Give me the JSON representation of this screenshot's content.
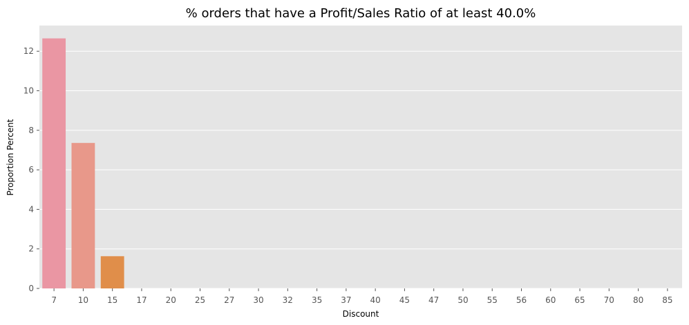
{
  "chart_data": {
    "type": "bar",
    "title": "% orders that have a Profit/Sales Ratio of at least 40.0%",
    "xlabel": "Discount",
    "ylabel": "Proportion Percent",
    "categories": [
      "7",
      "10",
      "15",
      "17",
      "20",
      "25",
      "27",
      "30",
      "32",
      "35",
      "37",
      "40",
      "45",
      "47",
      "50",
      "55",
      "56",
      "60",
      "65",
      "70",
      "80",
      "85"
    ],
    "values": [
      12.65,
      7.36,
      1.63,
      0,
      0,
      0,
      0,
      0,
      0,
      0,
      0,
      0,
      0,
      0,
      0,
      0,
      0,
      0,
      0,
      0,
      0,
      0
    ],
    "ylim": [
      0,
      13.3
    ],
    "yticks": [
      0,
      2,
      4,
      6,
      8,
      10,
      12
    ],
    "grid": true,
    "legend": "none",
    "colors": [
      "#ea96a3",
      "#e8988a",
      "#e08e4a",
      "#c79b4a",
      "#b6a04a",
      "#a5a54a",
      "#93a94a",
      "#7faf4a",
      "#5cb04a",
      "#4ab070",
      "#4aaf8e",
      "#4aada0",
      "#4aaaae",
      "#4ba6bc",
      "#4fa1cc",
      "#5e9ad8",
      "#7d92e0",
      "#a08ae0",
      "#bd80d8",
      "#d27ec4",
      "#e080b0",
      "#e887a0"
    ],
    "background_color": "#e5e5e5",
    "grid_color": "#ffffff"
  }
}
